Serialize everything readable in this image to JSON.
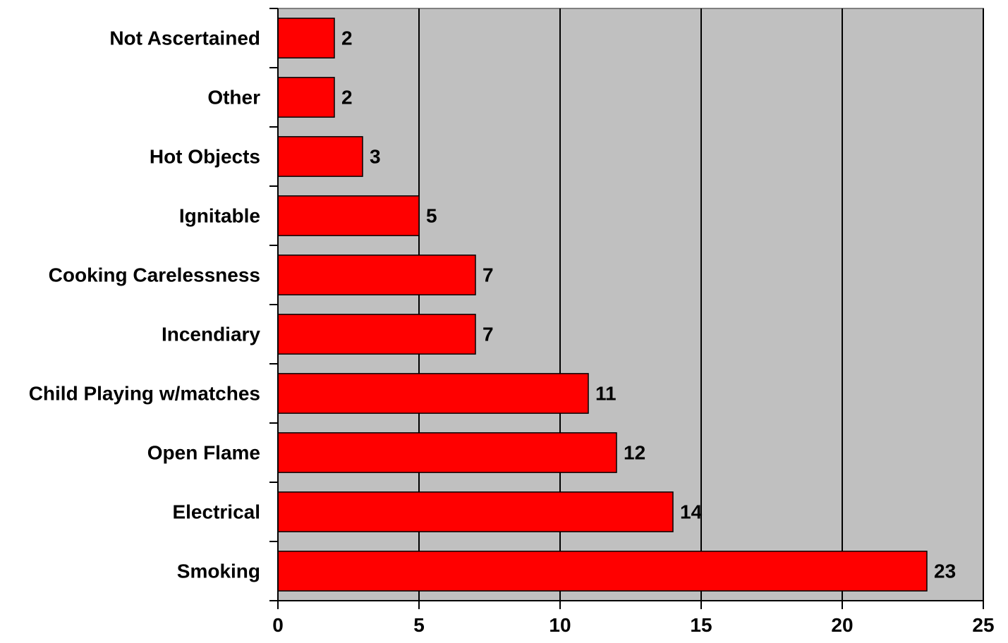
{
  "chart_data": {
    "type": "bar",
    "orientation": "horizontal",
    "title": "",
    "xlabel": "",
    "ylabel": "",
    "categories": [
      "Not Ascertained",
      "Other",
      "Hot Objects",
      "Ignitable",
      "Cooking Carelessness",
      "Incendiary",
      "Child Playing w/matches",
      "Open Flame",
      "Electrical",
      "Smoking"
    ],
    "values": [
      2,
      2,
      3,
      5,
      7,
      7,
      11,
      12,
      14,
      23
    ],
    "xlim": [
      0,
      25
    ],
    "xticks": [
      0,
      5,
      10,
      15,
      20,
      25
    ],
    "grid": "vertical",
    "legend": "none",
    "colors": {
      "bar_fill": "#ff0000",
      "bar_stroke": "#000000",
      "plot_background": "#c0c0c0",
      "gridline": "#000000"
    }
  }
}
